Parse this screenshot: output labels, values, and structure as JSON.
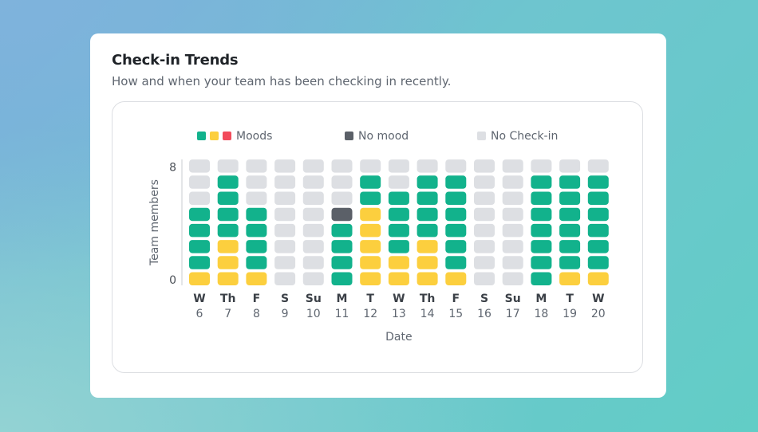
{
  "card": {
    "title": "Check-in Trends",
    "subtitle": "How and when your team has been checking in recently."
  },
  "colors": {
    "green": "#12b28c",
    "yellow": "#fccf3e",
    "red": "#f24b5b",
    "dark": "#5b6068",
    "none": "#dddfe3"
  },
  "chart_data": {
    "type": "heatmap",
    "legend": [
      {
        "label": "Moods",
        "colors": [
          "green",
          "yellow",
          "red"
        ]
      },
      {
        "label": "No mood",
        "colors": [
          "dark"
        ]
      },
      {
        "label": "No Check-in",
        "colors": [
          "none"
        ]
      }
    ],
    "ylabel": "Team members",
    "xlabel": "Date",
    "ytick_labels": [
      "8",
      "0"
    ],
    "team_size": 8,
    "columns": [
      {
        "day": "W",
        "date": "6",
        "cells": [
          "yellow",
          "green",
          "green",
          "green",
          "green"
        ]
      },
      {
        "day": "Th",
        "date": "7",
        "cells": [
          "yellow",
          "yellow",
          "yellow",
          "green",
          "green",
          "green",
          "green"
        ]
      },
      {
        "day": "F",
        "date": "8",
        "cells": [
          "yellow",
          "green",
          "green",
          "green",
          "green"
        ]
      },
      {
        "day": "S",
        "date": "9",
        "cells": []
      },
      {
        "day": "Su",
        "date": "10",
        "cells": []
      },
      {
        "day": "M",
        "date": "11",
        "cells": [
          "green",
          "green",
          "green",
          "green",
          "dark"
        ]
      },
      {
        "day": "T",
        "date": "12",
        "cells": [
          "yellow",
          "yellow",
          "yellow",
          "yellow",
          "yellow",
          "green",
          "green"
        ]
      },
      {
        "day": "W",
        "date": "13",
        "cells": [
          "yellow",
          "yellow",
          "green",
          "green",
          "green",
          "green"
        ]
      },
      {
        "day": "Th",
        "date": "14",
        "cells": [
          "yellow",
          "yellow",
          "yellow",
          "green",
          "green",
          "green",
          "green"
        ]
      },
      {
        "day": "F",
        "date": "15",
        "cells": [
          "yellow",
          "green",
          "green",
          "green",
          "green",
          "green",
          "green"
        ]
      },
      {
        "day": "S",
        "date": "16",
        "cells": []
      },
      {
        "day": "Su",
        "date": "17",
        "cells": []
      },
      {
        "day": "M",
        "date": "18",
        "cells": [
          "green",
          "green",
          "green",
          "green",
          "green",
          "green",
          "green"
        ]
      },
      {
        "day": "T",
        "date": "19",
        "cells": [
          "yellow",
          "green",
          "green",
          "green",
          "green",
          "green",
          "green"
        ]
      },
      {
        "day": "W",
        "date": "20",
        "cells": [
          "yellow",
          "green",
          "green",
          "green",
          "green",
          "green",
          "green"
        ]
      }
    ]
  }
}
